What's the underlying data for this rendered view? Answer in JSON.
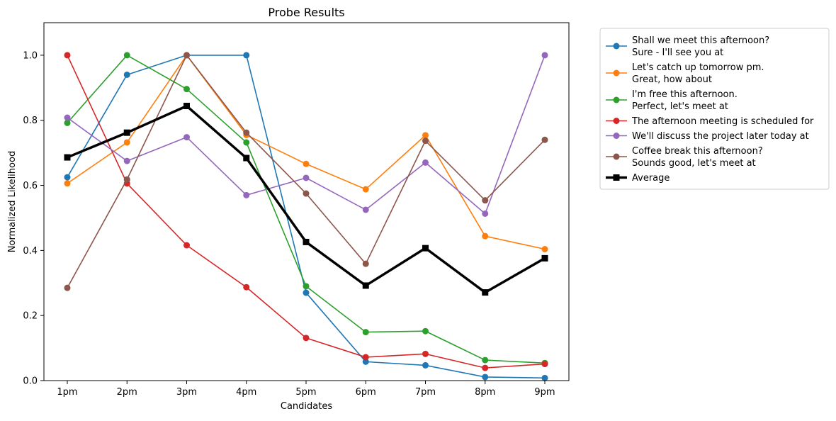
{
  "chart_data": {
    "type": "line",
    "title": "Probe Results",
    "xlabel": "Candidates",
    "ylabel": "Normalized Likelihood",
    "categories": [
      "1pm",
      "2pm",
      "3pm",
      "4pm",
      "5pm",
      "6pm",
      "7pm",
      "8pm",
      "9pm"
    ],
    "ylim": [
      0,
      1.1
    ],
    "yticks": [
      0.0,
      0.2,
      0.4,
      0.6,
      0.8,
      1.0
    ],
    "ytick_labels": [
      "0.0",
      "0.2",
      "0.4",
      "0.6",
      "0.8",
      "1.0"
    ],
    "grid": false,
    "legend_position": "outside-top-right",
    "series": [
      {
        "name_lines": [
          "Shall we meet this afternoon?",
          "Sure - I'll see you at"
        ],
        "color": "#1f77b4",
        "marker": "circle",
        "values": [
          0.625,
          0.94,
          1.0,
          1.0,
          0.27,
          0.058,
          0.047,
          0.011,
          0.008
        ]
      },
      {
        "name_lines": [
          "Let's catch up tomorrow pm.",
          "Great, how about"
        ],
        "color": "#ff7f0e",
        "marker": "circle",
        "values": [
          0.606,
          0.732,
          1.0,
          0.755,
          0.666,
          0.588,
          0.754,
          0.444,
          0.404
        ]
      },
      {
        "name_lines": [
          "I'm free this afternoon.",
          "Perfect, let's meet at"
        ],
        "color": "#2ca02c",
        "marker": "circle",
        "values": [
          0.792,
          1.0,
          0.896,
          0.732,
          0.29,
          0.149,
          0.152,
          0.063,
          0.054
        ]
      },
      {
        "name_lines": [
          "The afternoon meeting is scheduled for"
        ],
        "color": "#d62728",
        "marker": "circle",
        "values": [
          1.0,
          0.606,
          0.416,
          0.287,
          0.131,
          0.072,
          0.082,
          0.039,
          0.051
        ]
      },
      {
        "name_lines": [
          "We'll discuss the project later today at"
        ],
        "color": "#9467bd",
        "marker": "circle",
        "values": [
          0.808,
          0.675,
          0.748,
          0.57,
          0.623,
          0.525,
          0.67,
          0.513,
          1.0
        ]
      },
      {
        "name_lines": [
          "Coffee break this afternoon?",
          "Sounds good, let's meet at"
        ],
        "color": "#8c564b",
        "marker": "circle",
        "values": [
          0.285,
          0.618,
          1.0,
          0.762,
          0.575,
          0.359,
          0.737,
          0.554,
          0.74
        ]
      },
      {
        "name_lines": [
          "Average"
        ],
        "color": "#000000",
        "marker": "square",
        "bold": true,
        "values": [
          0.686,
          0.762,
          0.844,
          0.684,
          0.426,
          0.292,
          0.407,
          0.271,
          0.376
        ]
      }
    ]
  }
}
